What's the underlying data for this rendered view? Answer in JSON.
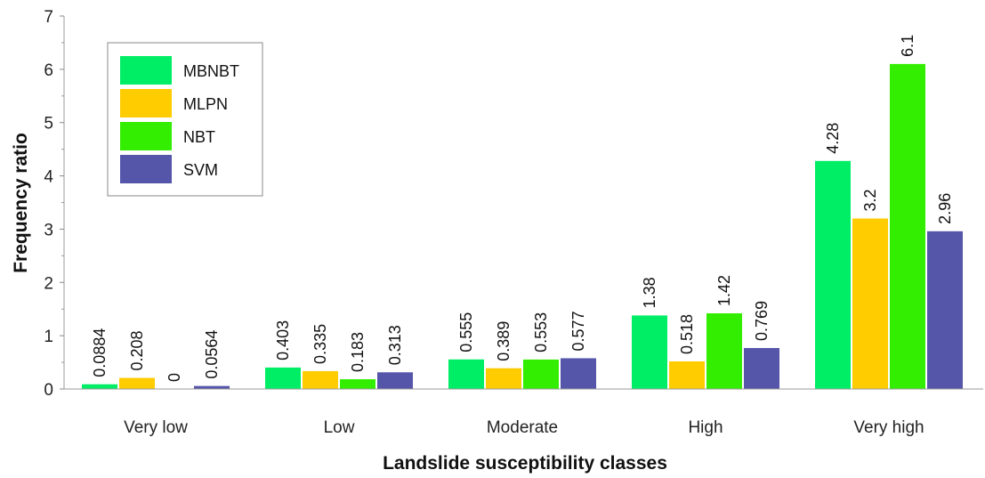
{
  "chart_data": {
    "type": "bar",
    "title": "",
    "xlabel": "Landslide susceptibility classes",
    "ylabel": "Frequency ratio",
    "ylim": [
      0,
      7
    ],
    "yticks": [
      0,
      1,
      2,
      3,
      4,
      5,
      6,
      7
    ],
    "categories": [
      "Very low",
      "Low",
      "Moderate",
      "High",
      "Very high"
    ],
    "series": [
      {
        "name": "MBNBT",
        "color": "#00ee66",
        "values": [
          0.0884,
          0.403,
          0.555,
          1.38,
          4.28
        ],
        "labels": [
          "0.0884",
          "0.403",
          "0.555",
          "1.38",
          "4.28"
        ]
      },
      {
        "name": "MLPN",
        "color": "#ffcc00",
        "values": [
          0.208,
          0.335,
          0.389,
          0.518,
          3.2
        ],
        "labels": [
          "0.208",
          "0.335",
          "0.389",
          "0.518",
          "3.2"
        ]
      },
      {
        "name": "NBT",
        "color": "#33ee00",
        "values": [
          0,
          0.183,
          0.553,
          1.42,
          6.1
        ],
        "labels": [
          "0",
          "0.183",
          "0.553",
          "1.42",
          "6.1"
        ]
      },
      {
        "name": "SVM",
        "color": "#5555aa",
        "values": [
          0.0564,
          0.313,
          0.577,
          0.769,
          2.96
        ],
        "labels": [
          "0.0564",
          "0.313",
          "0.577",
          "0.769",
          "2.96"
        ]
      }
    ],
    "legend_position": "top-left",
    "grid": false
  }
}
